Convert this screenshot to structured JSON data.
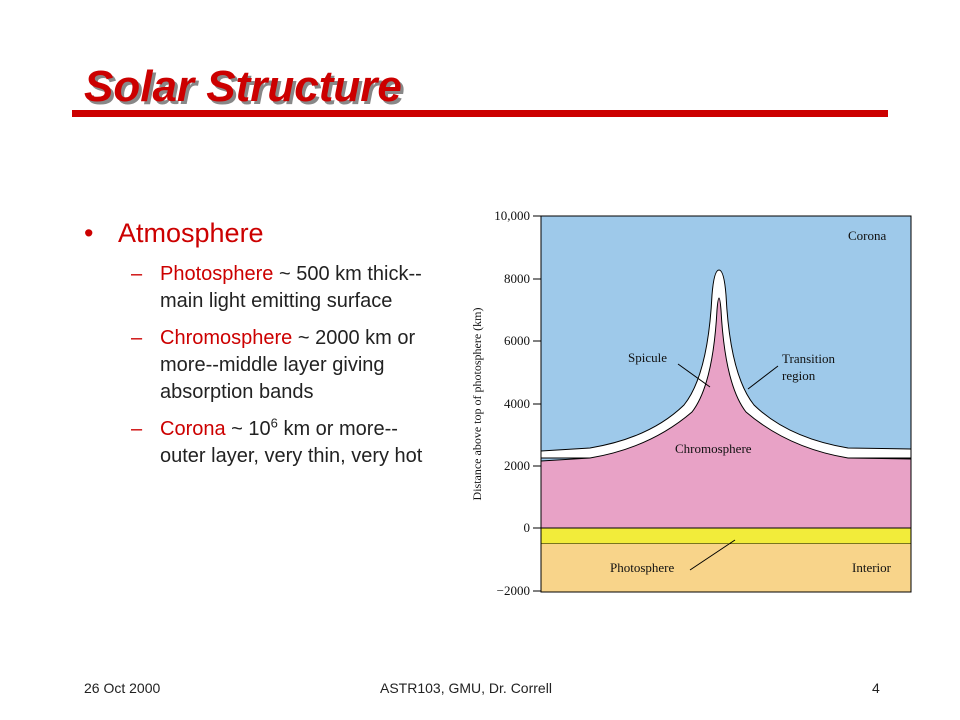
{
  "slide": {
    "title": "Solar Structure",
    "bullets": {
      "main": "Atmosphere",
      "items": [
        {
          "term": "Photosphere",
          "text": " ~ 500 km thick--main light emitting surface"
        },
        {
          "term": "Chromosphere",
          "text": " ~ 2000 km or more--middle layer giving absorption bands"
        },
        {
          "term": "Corona",
          "text": " ~ 10",
          "sup": "6",
          "text_after": " km or more--outer layer, very thin, very hot"
        }
      ]
    }
  },
  "figure": {
    "y_axis_label": "Distance above top of photosphere (km)",
    "y_ticks": [
      "10,000",
      "8000",
      "6000",
      "4000",
      "2000",
      "0",
      "−2000"
    ],
    "labels": {
      "corona": "Corona",
      "spicule": "Spicule",
      "transition": "Transition",
      "transition2": "region",
      "chromosphere": "Chromosphere",
      "photosphere": "Photosphere",
      "interior": "Interior"
    },
    "colors": {
      "corona": "#9ec9ea",
      "chromosphere": "#e8a2c6",
      "transition": "#ffffff",
      "photosphere": "#f2ec3a",
      "interior": "#f8d48a"
    }
  },
  "footer": {
    "date": "26 Oct 2000",
    "course": "ASTR103,  GMU, Dr. Correll",
    "page": "4"
  }
}
